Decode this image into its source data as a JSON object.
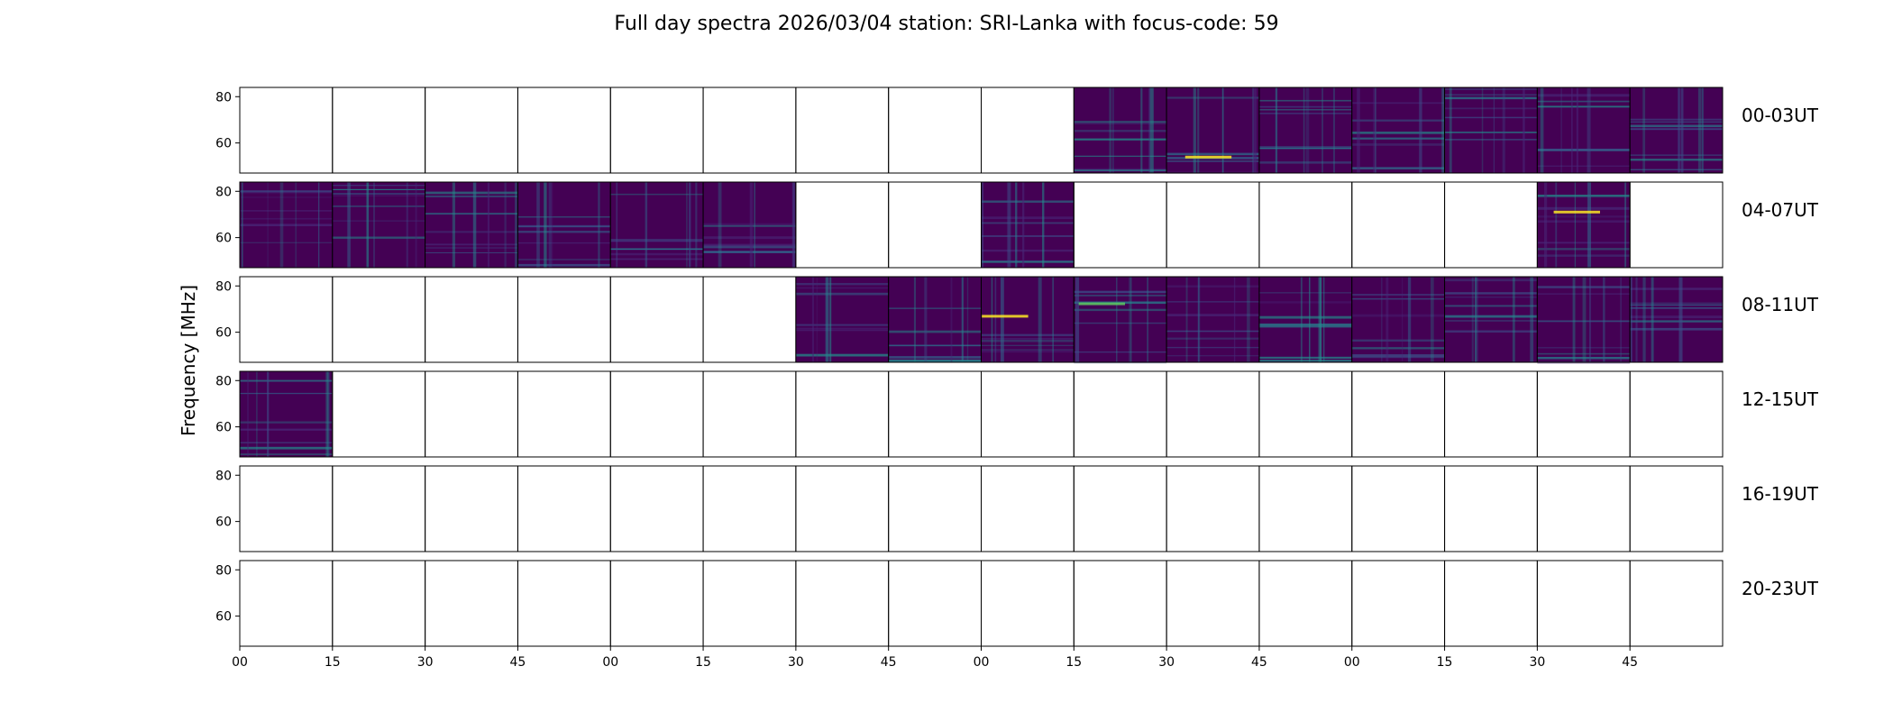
{
  "chart_data": {
    "type": "heatmap",
    "title": "Full day spectra 2026/03/04 station: SRI-Lanka with focus-code: 59",
    "ylabel": "Frequency [MHz]",
    "ylim": [
      47,
      84
    ],
    "yticks": [
      60,
      80
    ],
    "xtick_labels": [
      "00",
      "15",
      "30",
      "45",
      "00",
      "15",
      "30",
      "45",
      "00",
      "15",
      "30",
      "45",
      "00",
      "15",
      "30",
      "45"
    ],
    "colormap": "viridis",
    "panels_per_row": 16,
    "panel_minutes": 15,
    "rows": [
      {
        "label": "00-03UT",
        "data_panels": [
          false,
          false,
          false,
          false,
          false,
          false,
          false,
          false,
          false,
          true,
          true,
          true,
          true,
          true,
          true,
          true
        ]
      },
      {
        "label": "04-07UT",
        "data_panels": [
          true,
          true,
          true,
          true,
          true,
          true,
          false,
          false,
          true,
          false,
          false,
          false,
          false,
          false,
          true,
          false
        ]
      },
      {
        "label": "08-11UT",
        "data_panels": [
          false,
          false,
          false,
          false,
          false,
          false,
          true,
          true,
          true,
          true,
          true,
          true,
          true,
          true,
          true,
          true
        ]
      },
      {
        "label": "12-15UT",
        "data_panels": [
          true,
          false,
          false,
          false,
          false,
          false,
          false,
          false,
          false,
          false,
          false,
          false,
          false,
          false,
          false,
          false
        ]
      },
      {
        "label": "16-19UT",
        "data_panels": [
          false,
          false,
          false,
          false,
          false,
          false,
          false,
          false,
          false,
          false,
          false,
          false,
          false,
          false,
          false,
          false
        ]
      },
      {
        "label": "20-23UT",
        "data_panels": [
          false,
          false,
          false,
          false,
          false,
          false,
          false,
          false,
          false,
          false,
          false,
          false,
          false,
          false,
          false,
          false
        ]
      }
    ],
    "colors": {
      "background": "#440154",
      "mid": "#3b528b",
      "teal": "#21918c",
      "high": "#5ec962",
      "peak": "#fde725"
    },
    "grid": false,
    "legend": "none"
  }
}
